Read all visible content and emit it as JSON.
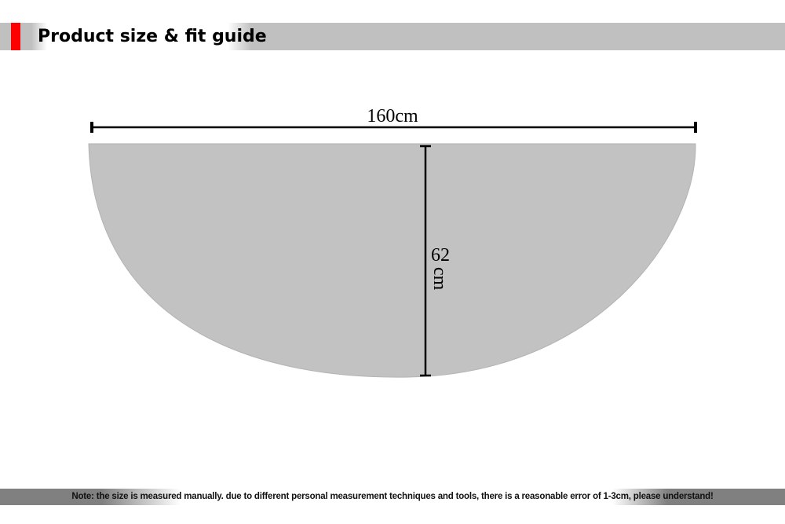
{
  "header": {
    "title": "Product size & fit guide",
    "accent_color": "#ff0000"
  },
  "diagram": {
    "width_label": "160cm",
    "height_label_value": "62",
    "height_label_unit": "cm",
    "shape_color": "#c2c2c2"
  },
  "footer": {
    "note": "Note: the size is measured manually. due to different personal measurement techniques and tools, there is a reasonable error of 1-3cm, please understand!"
  }
}
